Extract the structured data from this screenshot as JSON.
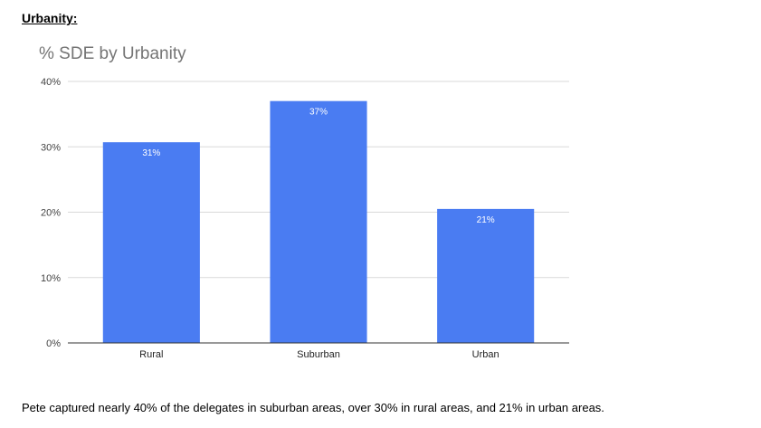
{
  "section_heading": "Urbanity:",
  "caption": "Pete captured nearly 40% of the delegates in suburban areas, over 30% in rural areas, and 21% in urban areas.",
  "colors": {
    "bar": "#4a7cf2",
    "grid": "#d9d9d9",
    "axis": "#333333",
    "title": "#757575"
  },
  "chart_data": {
    "type": "bar",
    "title": "% SDE by Urbanity",
    "xlabel": "",
    "ylabel": "",
    "categories": [
      "Rural",
      "Suburban",
      "Urban"
    ],
    "values": [
      30.7,
      37.0,
      20.5
    ],
    "data_labels": [
      "31%",
      "37%",
      "21%"
    ],
    "ylim": [
      0,
      40
    ],
    "yticks": [
      0,
      10,
      20,
      30,
      40
    ],
    "ytick_labels": [
      "0%",
      "10%",
      "20%",
      "30%",
      "40%"
    ],
    "grid": true,
    "legend": "none"
  }
}
